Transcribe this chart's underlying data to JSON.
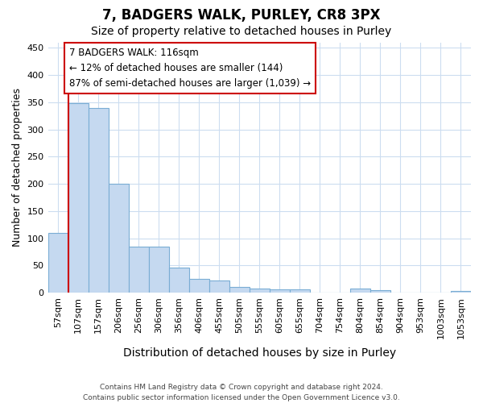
{
  "title": "7, BADGERS WALK, PURLEY, CR8 3PX",
  "subtitle": "Size of property relative to detached houses in Purley",
  "xlabel": "Distribution of detached houses by size in Purley",
  "ylabel": "Number of detached properties",
  "categories": [
    "57sqm",
    "107sqm",
    "157sqm",
    "206sqm",
    "256sqm",
    "306sqm",
    "356sqm",
    "406sqm",
    "455sqm",
    "505sqm",
    "555sqm",
    "605sqm",
    "655sqm",
    "704sqm",
    "754sqm",
    "804sqm",
    "854sqm",
    "904sqm",
    "953sqm",
    "1003sqm",
    "1053sqm"
  ],
  "values": [
    110,
    348,
    340,
    200,
    85,
    85,
    46,
    25,
    22,
    11,
    8,
    6,
    6,
    1,
    1,
    8,
    5,
    1,
    1,
    1,
    3
  ],
  "bar_color": "#c5d9f0",
  "bar_edge_color": "#7aadd4",
  "annotation_line1": "7 BADGERS WALK: 116sqm",
  "annotation_line2": "← 12% of detached houses are smaller (144)",
  "annotation_line3": "87% of semi-detached houses are larger (1,039) →",
  "annotation_box_facecolor": "#ffffff",
  "annotation_box_edgecolor": "#cc0000",
  "vline_color": "#cc0000",
  "vline_x": 0.5,
  "ylim": [
    0,
    460
  ],
  "yticks": [
    0,
    50,
    100,
    150,
    200,
    250,
    300,
    350,
    400,
    450
  ],
  "bg_color": "#ffffff",
  "grid_color": "#ccddf0",
  "title_fontsize": 12,
  "subtitle_fontsize": 10,
  "ylabel_fontsize": 9,
  "xlabel_fontsize": 10,
  "tick_fontsize": 8,
  "footer_line1": "Contains HM Land Registry data © Crown copyright and database right 2024.",
  "footer_line2": "Contains public sector information licensed under the Open Government Licence v3.0."
}
